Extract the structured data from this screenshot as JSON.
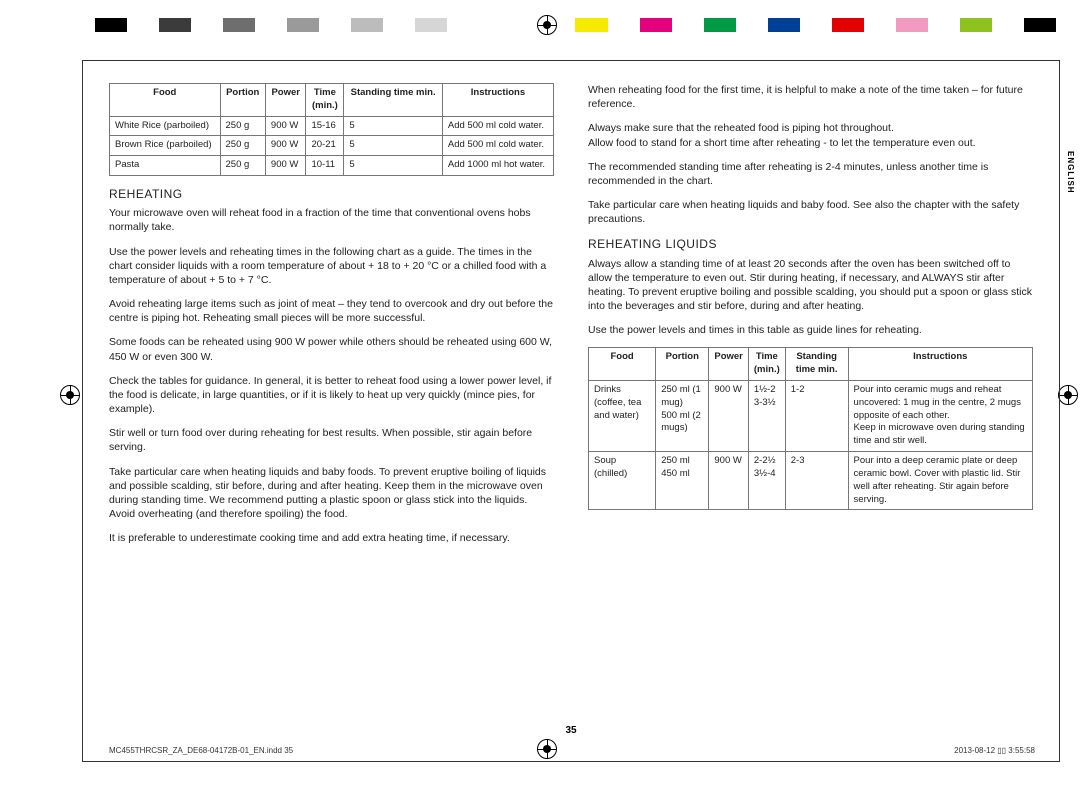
{
  "colorBar": [
    "#000000",
    "#ffffff",
    "#3b3b3b",
    "#ffffff",
    "#6e6e6e",
    "#ffffff",
    "#9a9a9a",
    "#ffffff",
    "#bcbcbc",
    "#ffffff",
    "#d6d6d6",
    "#ffffff",
    "#ffffff",
    "#ffffff",
    "#ffffff",
    "#f6ea00",
    "#ffffff",
    "#e5007e",
    "#ffffff",
    "#009944",
    "#ffffff",
    "#003f98",
    "#ffffff",
    "#e30000",
    "#ffffff",
    "#f29bc1",
    "#ffffff",
    "#8ec31f",
    "#ffffff",
    "#000000"
  ],
  "sideLabel": "ENGLISH",
  "table1": {
    "headers": [
      "Food",
      "Portion",
      "Power",
      "Time (min.)",
      "Standing time min.",
      "Instructions"
    ],
    "rows": [
      [
        "White Rice (parboiled)",
        "250 g",
        "900 W",
        "15-16",
        "5",
        "Add 500 ml cold water."
      ],
      [
        "Brown Rice (parboiled)",
        "250 g",
        "900 W",
        "20-21",
        "5",
        "Add 500 ml cold water."
      ],
      [
        "Pasta",
        "250 g",
        "900 W",
        "10-11",
        "5",
        "Add 1000 ml hot water."
      ]
    ]
  },
  "heading1": "REHEATING",
  "p1": "Your microwave oven will reheat food in a fraction of the time that conventional ovens hobs normally take.",
  "p2": "Use the power levels and reheating times in the following chart as a guide. The times in the chart consider liquids with a room temperature of about  + 18 to  + 20 °C or a chilled food with a temperature of about  + 5 to  + 7 °C.",
  "p3": "Avoid reheating large items such as joint of meat – they tend to overcook and dry out before the centre is piping hot. Reheating small pieces will be more successful.",
  "p4": "Some foods can be reheated using 900 W power while others should be reheated using 600 W, 450 W or even 300 W.",
  "p5": "Check the tables for guidance. In general, it is better to reheat food using a lower power level, if the food is delicate, in large quantities, or if it is likely to heat up very quickly (mince pies, for example).",
  "p6": "Stir well or turn food over during reheating for best results. When possible, stir again before serving.",
  "p7": "Take particular care when heating liquids and baby foods. To prevent eruptive boiling of liquids and possible scalding, stir before, during and after heating. Keep them in the microwave oven during standing time. We recommend putting a plastic spoon or glass stick into the liquids. Avoid overheating (and therefore spoiling) the food.",
  "p8": "It is preferable to underestimate cooking time and add extra heating time, if necessary.",
  "r1": "When reheating food for the first time, it is helpful to make a note of the time taken – for future reference.",
  "r2": "Always make sure that the reheated food is piping hot throughout.",
  "r3": "Allow food to stand for a short time after reheating - to let the temperature even out.",
  "r4": "The recommended standing time after reheating is 2-4 minutes, unless another time is recommended in the chart.",
  "r5": "Take particular care when heating liquids and baby food. See also the chapter with the safety precautions.",
  "heading2": "REHEATING LIQUIDS",
  "r6": "Always allow a standing time of at least 20 seconds after the oven has been switched off to allow the temperature to even out. Stir during heating, if necessary, and ALWAYS stir after heating. To prevent eruptive boiling and possible scalding, you should put a spoon or glass stick into the beverages and stir before, during and after heating.",
  "r7": "Use the power levels and times in this table as guide lines for reheating.",
  "table2": {
    "headers": [
      "Food",
      "Portion",
      "Power",
      "Time (min.)",
      "Standing time min.",
      "Instructions"
    ],
    "rows": [
      [
        "Drinks (coffee, tea and water)",
        "250 ml (1 mug)\n500 ml (2 mugs)",
        "900 W",
        "1½-2\n3-3½",
        "1-2",
        "Pour into ceramic mugs and reheat uncovered: 1 mug in the centre, 2 mugs opposite of each other.\nKeep in microwave oven during standing time and stir well."
      ],
      [
        "Soup (chilled)",
        "250 ml\n450 ml",
        "900 W",
        "2-2½\n3½-4",
        "2-3",
        "Pour into a deep ceramic plate or deep ceramic bowl. Cover with plastic lid. Stir well after reheating. Stir again before serving."
      ]
    ]
  },
  "pageNumber": "35",
  "footerLeft": "MC455THRCSR_ZA_DE68-04172B-01_EN.indd   35",
  "footerRight": "2013-08-12   ▯▯ 3:55:58"
}
